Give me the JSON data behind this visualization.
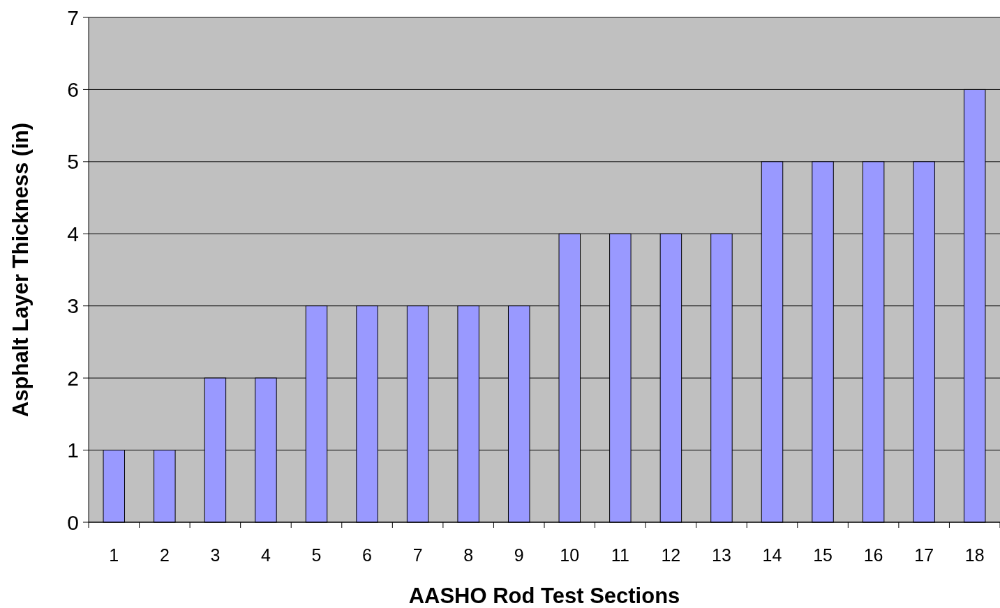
{
  "chart_data": {
    "type": "bar",
    "xlabel": "AASHO Rod Test Sections",
    "ylabel": "Asphalt Layer Thickness (in)",
    "categories": [
      "1",
      "2",
      "3",
      "4",
      "5",
      "6",
      "7",
      "8",
      "9",
      "10",
      "11",
      "12",
      "13",
      "14",
      "15",
      "16",
      "17",
      "18"
    ],
    "values": [
      1,
      1,
      2,
      2,
      3,
      3,
      3,
      3,
      3,
      4,
      4,
      4,
      4,
      5,
      5,
      5,
      5,
      6
    ],
    "color": "#9999ff",
    "ylim": [
      0,
      7
    ],
    "yticks": [
      0,
      1,
      2,
      3,
      4,
      5,
      6,
      7
    ],
    "grid": "y"
  }
}
